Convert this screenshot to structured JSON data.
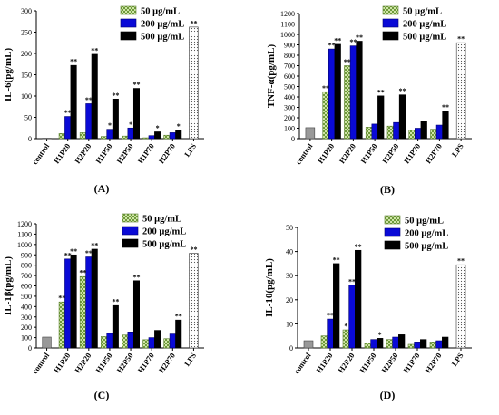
{
  "legend_swatches": {
    "50 μg/mL": "#cfe4a8",
    "200 μg/mL": "#0a0ad6",
    "500 μg/mL": "#000000",
    "LPS": "#ffffff"
  },
  "chart_data": [
    {
      "type": "bar",
      "panel": "(A)",
      "ylabel": "IL-6(pg/mL)",
      "ylim": [
        0,
        300
      ],
      "yticks": [
        0,
        50,
        100,
        150,
        200,
        250,
        300
      ],
      "categories": [
        "control",
        "H1P20",
        "H2P20",
        "H1P50",
        "H2P50",
        "H1P70",
        "H2P70",
        "LPS"
      ],
      "legend": [
        "50 μg/mL",
        "200 μg/mL",
        "500 μg/mL"
      ],
      "series": [
        {
          "name": "50 μg/mL",
          "values": [
            null,
            12,
            14,
            5,
            6,
            2,
            8,
            null
          ]
        },
        {
          "name": "200 μg/mL",
          "values": [
            null,
            52,
            82,
            22,
            25,
            7,
            14,
            null
          ]
        },
        {
          "name": "500 μg/mL",
          "values": [
            null,
            172,
            198,
            93,
            118,
            16,
            20,
            null
          ]
        },
        {
          "name": "control",
          "values": [
            1,
            null,
            null,
            null,
            null,
            null,
            null,
            null
          ]
        },
        {
          "name": "LPS",
          "values": [
            null,
            null,
            null,
            null,
            null,
            null,
            null,
            262
          ]
        }
      ],
      "annotations": [
        {
          "category": "H1P20",
          "series": "200 μg/mL",
          "text": "**"
        },
        {
          "category": "H1P20",
          "series": "500 μg/mL",
          "text": "**"
        },
        {
          "category": "H2P20",
          "series": "200 μg/mL",
          "text": "**"
        },
        {
          "category": "H2P20",
          "series": "500 μg/mL",
          "text": "**"
        },
        {
          "category": "H1P50",
          "series": "200 μg/mL",
          "text": "*"
        },
        {
          "category": "H1P50",
          "series": "500 μg/mL",
          "text": "**"
        },
        {
          "category": "H2P50",
          "series": "200 μg/mL",
          "text": "*"
        },
        {
          "category": "H2P50",
          "series": "500 μg/mL",
          "text": "**"
        },
        {
          "category": "H1P70",
          "series": "500 μg/mL",
          "text": "*"
        },
        {
          "category": "H2P70",
          "series": "500 μg/mL",
          "text": "*"
        },
        {
          "category": "LPS",
          "series": "LPS",
          "text": "**"
        }
      ]
    },
    {
      "type": "bar",
      "panel": "(B)",
      "ylabel": "TNF-α(pg/mL)",
      "ylim": [
        0,
        1200
      ],
      "yticks": [
        0,
        100,
        200,
        300,
        400,
        500,
        600,
        700,
        800,
        900,
        1000,
        1100,
        1200
      ],
      "categories": [
        "control",
        "H1P20",
        "H2P20",
        "H1P50",
        "H2P50",
        "H1P70",
        "H2P70",
        "LPS"
      ],
      "legend": [
        "50 μg/mL",
        "200 μg/mL",
        "500 μg/mL"
      ],
      "series": [
        {
          "name": "50 μg/mL",
          "values": [
            null,
            450,
            700,
            110,
            120,
            80,
            90,
            null
          ]
        },
        {
          "name": "200 μg/mL",
          "values": [
            null,
            860,
            890,
            140,
            155,
            100,
            130,
            null
          ]
        },
        {
          "name": "500 μg/mL",
          "values": [
            null,
            905,
            935,
            410,
            420,
            170,
            265,
            null
          ]
        },
        {
          "name": "control",
          "values": [
            105,
            null,
            null,
            null,
            null,
            null,
            null,
            null
          ]
        },
        {
          "name": "LPS",
          "values": [
            null,
            null,
            null,
            null,
            null,
            null,
            null,
            920
          ]
        }
      ],
      "annotations": [
        {
          "category": "H1P20",
          "series": "50 μg/mL",
          "text": "**"
        },
        {
          "category": "H1P20",
          "series": "200 μg/mL",
          "text": "**"
        },
        {
          "category": "H1P20",
          "series": "500 μg/mL",
          "text": "**"
        },
        {
          "category": "H2P20",
          "series": "50 μg/mL",
          "text": "**"
        },
        {
          "category": "H2P20",
          "series": "200 μg/mL",
          "text": "**"
        },
        {
          "category": "H2P20",
          "series": "500 μg/mL",
          "text": "**"
        },
        {
          "category": "H1P50",
          "series": "500 μg/mL",
          "text": "**"
        },
        {
          "category": "H2P50",
          "series": "500 μg/mL",
          "text": "**"
        },
        {
          "category": "H2P70",
          "series": "500 μg/mL",
          "text": "**"
        },
        {
          "category": "LPS",
          "series": "LPS",
          "text": "**"
        }
      ]
    },
    {
      "type": "bar",
      "panel": "(C)",
      "ylabel": "IL-1β(pg/mL)",
      "ylim": [
        0,
        1200
      ],
      "yticks": [
        0,
        100,
        200,
        300,
        400,
        500,
        600,
        700,
        800,
        900,
        1000,
        1100,
        1200
      ],
      "categories": [
        "control",
        "H1P20",
        "H2P20",
        "H1P50",
        "H2P50",
        "H1P70",
        "H2P70",
        "LPS"
      ],
      "legend": [
        "50 μg/mL",
        "200 μg/mL",
        "500 μg/mL"
      ],
      "series": [
        {
          "name": "50 μg/mL",
          "values": [
            null,
            445,
            690,
            110,
            125,
            80,
            90,
            null
          ]
        },
        {
          "name": "200 μg/mL",
          "values": [
            null,
            860,
            880,
            140,
            155,
            100,
            135,
            null
          ]
        },
        {
          "name": "500 μg/mL",
          "values": [
            null,
            900,
            955,
            410,
            650,
            170,
            270,
            null
          ]
        },
        {
          "name": "control",
          "values": [
            105,
            null,
            null,
            null,
            null,
            null,
            null,
            null
          ]
        },
        {
          "name": "LPS",
          "values": [
            null,
            null,
            null,
            null,
            null,
            null,
            null,
            915
          ]
        }
      ],
      "annotations": [
        {
          "category": "H1P20",
          "series": "50 μg/mL",
          "text": "**"
        },
        {
          "category": "H1P20",
          "series": "200 μg/mL",
          "text": "**"
        },
        {
          "category": "H1P20",
          "series": "500 μg/mL",
          "text": "**"
        },
        {
          "category": "H2P20",
          "series": "50 μg/mL",
          "text": "**"
        },
        {
          "category": "H2P20",
          "series": "200 μg/mL",
          "text": "**"
        },
        {
          "category": "H2P20",
          "series": "500 μg/mL",
          "text": "**"
        },
        {
          "category": "H1P50",
          "series": "500 μg/mL",
          "text": "**"
        },
        {
          "category": "H2P50",
          "series": "500 μg/mL",
          "text": "**"
        },
        {
          "category": "H2P70",
          "series": "500 μg/mL",
          "text": "**"
        },
        {
          "category": "LPS",
          "series": "LPS",
          "text": "**"
        }
      ]
    },
    {
      "type": "bar",
      "panel": "(D)",
      "ylabel": "IL-10(pg/mL)",
      "ylim": [
        0,
        50
      ],
      "yticks": [
        0,
        10,
        20,
        30,
        40,
        50
      ],
      "categories": [
        "control",
        "H1P20",
        "H2P20",
        "H1P50",
        "H2P50",
        "H1P70",
        "H2P70",
        "LPS"
      ],
      "legend": [
        "50 μg/mL",
        "200 μg/mL",
        "500 μg/mL"
      ],
      "series": [
        {
          "name": "50 μg/mL",
          "values": [
            null,
            5,
            7.5,
            2,
            3.5,
            1.5,
            2.5,
            null
          ]
        },
        {
          "name": "200 μg/mL",
          "values": [
            null,
            12,
            26,
            3.5,
            4.5,
            2.5,
            3,
            null
          ]
        },
        {
          "name": "500 μg/mL",
          "values": [
            null,
            35,
            40.5,
            4,
            5.5,
            3.5,
            4.5,
            null
          ]
        },
        {
          "name": "control",
          "values": [
            3,
            null,
            null,
            null,
            null,
            null,
            null,
            null
          ]
        },
        {
          "name": "LPS",
          "values": [
            null,
            null,
            null,
            null,
            null,
            null,
            null,
            34.5
          ]
        }
      ],
      "annotations": [
        {
          "category": "H1P20",
          "series": "200 μg/mL",
          "text": "**"
        },
        {
          "category": "H1P20",
          "series": "500 μg/mL",
          "text": "**"
        },
        {
          "category": "H2P20",
          "series": "50 μg/mL",
          "text": "*"
        },
        {
          "category": "H2P20",
          "series": "200 μg/mL",
          "text": "**"
        },
        {
          "category": "H2P20",
          "series": "500 μg/mL",
          "text": "**"
        },
        {
          "category": "H1P50",
          "series": "500 μg/mL",
          "text": "*"
        },
        {
          "category": "LPS",
          "series": "LPS",
          "text": "**"
        }
      ]
    }
  ]
}
